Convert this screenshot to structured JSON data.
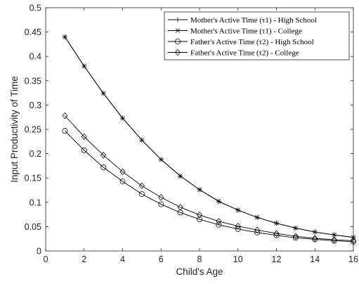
{
  "chart_data": {
    "type": "line",
    "xlabel": "Child's Age",
    "ylabel": "Input Productivity of Time",
    "xlim": [
      0,
      16
    ],
    "ylim": [
      0,
      0.5
    ],
    "xticks": [
      0,
      2,
      4,
      6,
      8,
      10,
      12,
      14,
      16
    ],
    "yticks": [
      0,
      0.05,
      0.1,
      0.15,
      0.2,
      0.25,
      0.3,
      0.35,
      0.4,
      0.45,
      0.5
    ],
    "xtick_labels": [
      "0",
      "2",
      "4",
      "6",
      "8",
      "10",
      "12",
      "14",
      "16"
    ],
    "ytick_labels": [
      "0",
      "0.05",
      "0.1",
      "0.15",
      "0.2",
      "0.25",
      "0.3",
      "0.35",
      "0.4",
      "0.45",
      "0.5"
    ],
    "grid": false,
    "legend_position": "top-right",
    "x": [
      1,
      2,
      3,
      4,
      5,
      6,
      7,
      8,
      9,
      10,
      11,
      12,
      13,
      14,
      15,
      16
    ],
    "series": [
      {
        "name": "Mother's Active Time (τ1) - High School",
        "marker": "plus",
        "values": [
          0.44,
          0.38,
          0.324,
          0.273,
          0.228,
          0.188,
          0.154,
          0.126,
          0.102,
          0.084,
          0.069,
          0.057,
          0.047,
          0.039,
          0.033,
          0.028
        ]
      },
      {
        "name": "Mother's Active Time (τ1) - College",
        "marker": "cross",
        "values": [
          0.44,
          0.38,
          0.324,
          0.273,
          0.228,
          0.188,
          0.154,
          0.126,
          0.102,
          0.084,
          0.069,
          0.057,
          0.047,
          0.039,
          0.033,
          0.028
        ]
      },
      {
        "name": "Father's Active Time (τ2) - High School",
        "marker": "circle",
        "values": [
          0.247,
          0.207,
          0.172,
          0.143,
          0.117,
          0.096,
          0.079,
          0.065,
          0.054,
          0.045,
          0.038,
          0.032,
          0.027,
          0.024,
          0.021,
          0.019
        ]
      },
      {
        "name": "Father's Active Time (τ2) - College",
        "marker": "diamond",
        "values": [
          0.278,
          0.235,
          0.197,
          0.163,
          0.134,
          0.11,
          0.09,
          0.074,
          0.061,
          0.051,
          0.043,
          0.036,
          0.03,
          0.026,
          0.023,
          0.021
        ]
      }
    ]
  }
}
